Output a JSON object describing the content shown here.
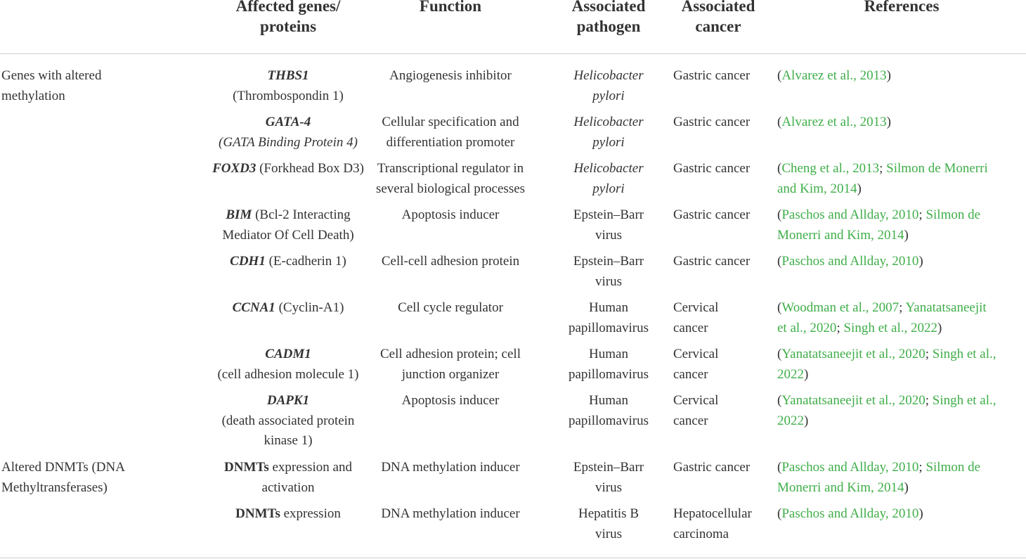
{
  "headers": {
    "gene_line1": "Affected genes/",
    "gene_line2": "proteins",
    "function": "Function",
    "pathogen_line1": "Associated",
    "pathogen_line2": "pathogen",
    "cancer_line1": "Associated",
    "cancer_line2": "cancer",
    "references": "References"
  },
  "groups": [
    {
      "line1": "Genes with altered",
      "line2": "methylation"
    },
    {
      "line1": "Altered DNMTs (DNA",
      "line2": "Methyltransferases)"
    }
  ],
  "rows": [
    {
      "gene": "THBS1",
      "gene_desc": "(Thrombospondin 1)",
      "function_l1": "Angiogenesis inhibitor",
      "function_l2": "",
      "pathogen_l1": "Helicobacter",
      "pathogen_l2": "pylori",
      "cancer_l1": "Gastric cancer",
      "cancer_l2": "",
      "ref_l1": [
        {
          "t": "(",
          "link": false
        },
        {
          "t": "Alvarez et al., 2013",
          "link": true
        },
        {
          "t": ")",
          "link": false
        }
      ],
      "ref_l2": []
    },
    {
      "gene": "GATA-4",
      "gene_desc": "(GATA Binding Protein 4)",
      "function_l1": "Cellular specification and",
      "function_l2": "differentiation promoter",
      "pathogen_l1": "Helicobacter",
      "pathogen_l2": "pylori",
      "cancer_l1": "Gastric cancer",
      "cancer_l2": "",
      "ref_l1": [
        {
          "t": "(",
          "link": false
        },
        {
          "t": "Alvarez et al., 2013",
          "link": true
        },
        {
          "t": ")",
          "link": false
        }
      ],
      "ref_l2": []
    },
    {
      "gene": "FOXD3",
      "gene_desc": " (Forkhead Box D3)",
      "function_l1": "Transcriptional regulator in",
      "function_l2": "several biological processes",
      "pathogen_l1": "Helicobacter",
      "pathogen_l2": "pylori",
      "cancer_l1": "Gastric cancer",
      "cancer_l2": "",
      "ref_l1": [
        {
          "t": "(",
          "link": false
        },
        {
          "t": "Cheng et al., 2013",
          "link": true
        },
        {
          "t": "; ",
          "link": false
        },
        {
          "t": "Silmon de Monerri",
          "link": true
        }
      ],
      "ref_l2": [
        {
          "t": "and Kim, 2014",
          "link": true
        },
        {
          "t": ")",
          "link": false
        }
      ]
    },
    {
      "gene": "BIM",
      "gene_desc": " (Bcl-2 Interacting",
      "gene_desc2": "Mediator Of Cell Death)",
      "function_l1": "Apoptosis inducer",
      "function_l2": "",
      "pathogen_l1": "Epstein–Barr",
      "pathogen_l2": "virus",
      "cancer_l1": "Gastric cancer",
      "cancer_l2": "",
      "ref_l1": [
        {
          "t": "(",
          "link": false
        },
        {
          "t": "Paschos and Allday, 2010",
          "link": true
        },
        {
          "t": "; ",
          "link": false
        },
        {
          "t": "Silmon de",
          "link": true
        }
      ],
      "ref_l2": [
        {
          "t": "Monerri and Kim, 2014",
          "link": true
        },
        {
          "t": ")",
          "link": false
        }
      ]
    },
    {
      "gene": "CDH1",
      "gene_desc": " (E-cadherin 1)",
      "function_l1": "Cell-cell adhesion protein",
      "function_l2": "",
      "pathogen_l1": "Epstein–Barr",
      "pathogen_l2": "virus",
      "cancer_l1": "Gastric cancer",
      "cancer_l2": "",
      "ref_l1": [
        {
          "t": "(",
          "link": false
        },
        {
          "t": "Paschos and Allday, 2010",
          "link": true
        },
        {
          "t": ")",
          "link": false
        }
      ],
      "ref_l2": []
    },
    {
      "gene": "CCNA1",
      "gene_desc": " (Cyclin-A1)",
      "function_l1": "Cell cycle regulator",
      "function_l2": "",
      "pathogen_l1": "Human",
      "pathogen_l2": "papillomavirus",
      "cancer_l1": "Cervical",
      "cancer_l2": "cancer",
      "ref_l1": [
        {
          "t": "(",
          "link": false
        },
        {
          "t": "Woodman et al., 2007",
          "link": true
        },
        {
          "t": "; ",
          "link": false
        },
        {
          "t": "Yanatatsaneejit",
          "link": true
        }
      ],
      "ref_l2": [
        {
          "t": "et al., 2020",
          "link": true
        },
        {
          "t": "; ",
          "link": false
        },
        {
          "t": "Singh et al., 2022",
          "link": true
        },
        {
          "t": ")",
          "link": false
        }
      ]
    },
    {
      "gene": "CADM1",
      "gene_desc": "(cell adhesion molecule 1)",
      "function_l1": "Cell adhesion protein; cell",
      "function_l2": "junction organizer",
      "pathogen_l1": "Human",
      "pathogen_l2": "papillomavirus",
      "cancer_l1": "Cervical",
      "cancer_l2": "cancer",
      "ref_l1": [
        {
          "t": "(",
          "link": false
        },
        {
          "t": "Yanatatsaneejit et al., 2020",
          "link": true
        },
        {
          "t": "; ",
          "link": false
        },
        {
          "t": "Singh et al.,",
          "link": true
        }
      ],
      "ref_l2": [
        {
          "t": "2022",
          "link": true
        },
        {
          "t": ")",
          "link": false
        }
      ]
    },
    {
      "gene": "DAPK1",
      "gene_desc": "(death associated protein",
      "gene_desc2": "kinase 1)",
      "function_l1": "Apoptosis inducer",
      "function_l2": "",
      "pathogen_l1": "Human",
      "pathogen_l2": "papillomavirus",
      "cancer_l1": "Cervical",
      "cancer_l2": "cancer",
      "ref_l1": [
        {
          "t": "(",
          "link": false
        },
        {
          "t": "Yanatatsaneejit et al., 2020",
          "link": true
        },
        {
          "t": "; ",
          "link": false
        },
        {
          "t": "Singh et al.,",
          "link": true
        }
      ],
      "ref_l2": [
        {
          "t": "2022",
          "link": true
        },
        {
          "t": ")",
          "link": false
        }
      ]
    },
    {
      "gene": "DNMTs",
      "gene_desc": " expression and",
      "gene_desc2": "activation",
      "function_l1": "DNA methylation inducer",
      "function_l2": "",
      "pathogen_l1": "Epstein–Barr",
      "pathogen_l2": "virus",
      "cancer_l1": "Gastric cancer",
      "cancer_l2": "",
      "ref_l1": [
        {
          "t": "(",
          "link": false
        },
        {
          "t": "Paschos and Allday, 2010",
          "link": true
        },
        {
          "t": "; ",
          "link": false
        },
        {
          "t": "Silmon de",
          "link": true
        }
      ],
      "ref_l2": [
        {
          "t": "Monerri and Kim, 2014",
          "link": true
        },
        {
          "t": ")",
          "link": false
        }
      ]
    },
    {
      "gene": "DNMTs",
      "gene_desc": " expression",
      "function_l1": "DNA methylation inducer",
      "function_l2": "",
      "pathogen_l1": "Hepatitis B",
      "pathogen_l2": "virus",
      "cancer_l1": "Hepatocellular",
      "cancer_l2": "carcinoma",
      "ref_l1": [
        {
          "t": "(",
          "link": false
        },
        {
          "t": "Paschos and Allday, 2010",
          "link": true
        },
        {
          "t": ")",
          "link": false
        }
      ],
      "ref_l2": []
    }
  ]
}
